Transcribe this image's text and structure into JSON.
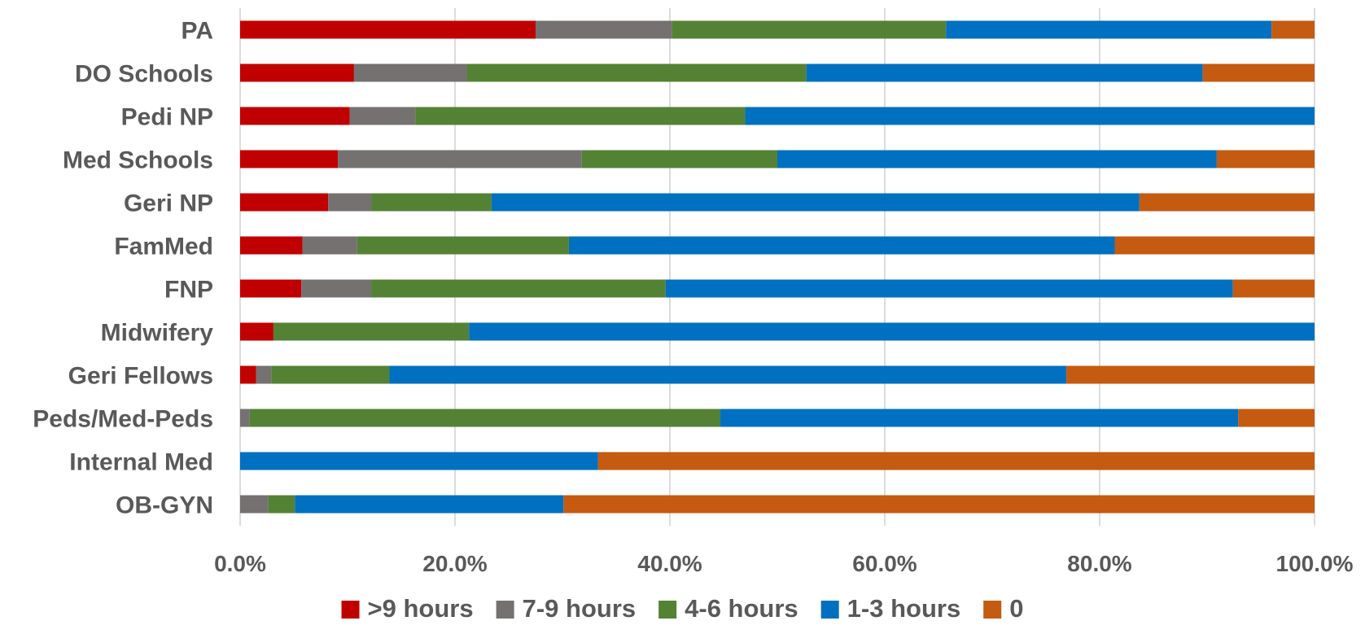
{
  "chart_data": {
    "type": "bar",
    "orientation": "horizontal",
    "stacked": true,
    "percent": true,
    "categories": [
      "PA",
      "DO Schools",
      "Pedi NP",
      "Med Schools",
      "Geri NP",
      "FamMed",
      "FNP",
      "Midwifery",
      "Geri Fellows",
      "Peds/Med-Peds",
      "Internal Med",
      "OB-GYN"
    ],
    "series": [
      {
        "name": ">9 hours",
        "color": "#C00000",
        "values": [
          27.5,
          10.6,
          10.2,
          9.1,
          8.2,
          5.8,
          5.7,
          3.1,
          1.5,
          0,
          0,
          0
        ]
      },
      {
        "name": "7-9 hours",
        "color": "#767171",
        "values": [
          12.7,
          10.5,
          6.1,
          22.7,
          4.0,
          5.1,
          6.5,
          0,
          1.4,
          0.9,
          0,
          2.6
        ]
      },
      {
        "name": "4-6 hours",
        "color": "#548235",
        "values": [
          25.5,
          31.6,
          30.7,
          18.2,
          11.2,
          19.7,
          27.4,
          18.2,
          11.0,
          43.8,
          0,
          2.5
        ]
      },
      {
        "name": "1-3 hours",
        "color": "#0070C0",
        "values": [
          30.3,
          36.9,
          53.0,
          40.9,
          60.3,
          50.8,
          52.8,
          78.7,
          63.0,
          48.2,
          33.3,
          25.0
        ]
      },
      {
        "name": "0",
        "color": "#C55A11",
        "values": [
          4.0,
          10.4,
          0,
          9.1,
          16.3,
          18.6,
          7.6,
          0,
          23.1,
          7.1,
          66.7,
          69.9
        ]
      }
    ],
    "xlim": [
      0,
      100
    ],
    "xticks": [
      "0.0%",
      "20.0%",
      "40.0%",
      "60.0%",
      "80.0%",
      "100.0%"
    ],
    "grid": true,
    "legend_position": "bottom",
    "title": "",
    "xlabel": "",
    "ylabel": ""
  }
}
